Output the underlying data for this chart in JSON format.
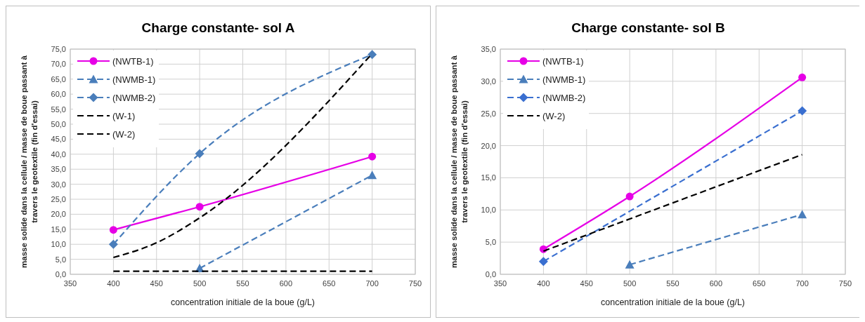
{
  "chart_data": [
    {
      "type": "line",
      "title": "Charge constante- sol A",
      "xlabel": "concentration initiale de la boue (g/L)",
      "ylabel": "masse solide dans la cellule  / masse de boue passant à\ntravers le geotextile (fin d'essai)",
      "xlim": [
        350,
        750
      ],
      "xticks": [
        350,
        400,
        450,
        500,
        550,
        600,
        650,
        700,
        750
      ],
      "ylim": [
        0,
        75
      ],
      "yticks": [
        {
          "value": 0,
          "label": "0,0"
        },
        {
          "value": 5,
          "label": "5,0"
        },
        {
          "value": 10,
          "label": "10,0"
        },
        {
          "value": 15,
          "label": "15,0"
        },
        {
          "value": 20,
          "label": "20,0"
        },
        {
          "value": 25,
          "label": "25,0"
        },
        {
          "value": 30,
          "label": "30,0"
        },
        {
          "value": 35,
          "label": "35,0"
        },
        {
          "value": 40,
          "label": "40,0"
        },
        {
          "value": 45,
          "label": "45,0"
        },
        {
          "value": 50,
          "label": "50,0"
        },
        {
          "value": 55,
          "label": "55,0"
        },
        {
          "value": 60,
          "label": "60,0"
        },
        {
          "value": 65,
          "label": "65,0"
        },
        {
          "value": 70,
          "label": "70,0"
        },
        {
          "value": 75,
          "label": "75,0"
        }
      ],
      "grid": true,
      "legend": "top left",
      "series": [
        {
          "name": "(NWTB-1)",
          "color": "#e600e6",
          "x": [
            400,
            500,
            700
          ],
          "values": [
            14.8,
            22.5,
            39.2
          ],
          "marker": "circle",
          "line_style": "solid"
        },
        {
          "name": "(NWMB-1)",
          "color": "#4a7ebb",
          "x": [
            500,
            700
          ],
          "values": [
            2,
            33
          ],
          "marker": "triangle",
          "line_style": "dashed"
        },
        {
          "name": "(NWMB-2)",
          "color": "#4a7ebb",
          "x": [
            400,
            500,
            700
          ],
          "values": [
            10,
            40.2,
            73.2
          ],
          "marker": "diamond",
          "line_style": "dashed"
        },
        {
          "name": "(W-1)",
          "color": "#000000",
          "x": [
            400,
            700
          ],
          "values": [
            1,
            1
          ],
          "marker": "none",
          "line_style": "dashed"
        },
        {
          "name": "(W-2)",
          "color": "#000000",
          "x": [
            400,
            450,
            500,
            700
          ],
          "values": [
            5.6,
            10.5,
            18.8,
            73.5
          ],
          "marker": "none",
          "line_style": "dashed"
        }
      ]
    },
    {
      "type": "line",
      "title": "Charge constante- sol B",
      "xlabel": "concentration initiale de la boue (g/L)",
      "ylabel": "masse solide dans la cellule  / masse de boue passant à\ntravers le geotextile (fin d'essai)",
      "xlim": [
        350,
        750
      ],
      "xticks": [
        350,
        400,
        450,
        500,
        550,
        600,
        650,
        700,
        750
      ],
      "ylim": [
        0,
        35
      ],
      "yticks": [
        {
          "value": 0,
          "label": "0,0"
        },
        {
          "value": 5,
          "label": "5,0"
        },
        {
          "value": 10,
          "label": "10,0"
        },
        {
          "value": 15,
          "label": "15,0"
        },
        {
          "value": 20,
          "label": "20,0"
        },
        {
          "value": 25,
          "label": "25,0"
        },
        {
          "value": 30,
          "label": "30,0"
        },
        {
          "value": 35,
          "label": "35,0"
        }
      ],
      "grid": true,
      "legend": "top left",
      "series": [
        {
          "name": "(NWTB-1)",
          "color": "#e600e6",
          "x": [
            400,
            500,
            700
          ],
          "values": [
            3.9,
            12.1,
            30.6
          ],
          "marker": "circle",
          "line_style": "solid"
        },
        {
          "name": "(NWMB-1)",
          "color": "#4a7ebb",
          "x": [
            500,
            700
          ],
          "values": [
            1.5,
            9.3
          ],
          "marker": "triangle",
          "line_style": "dashed"
        },
        {
          "name": "(NWMB-2)",
          "color": "#3a6fd0",
          "x": [
            400,
            700
          ],
          "values": [
            2,
            25.4
          ],
          "marker": "diamond",
          "line_style": "dashed"
        },
        {
          "name": "(W-2)",
          "color": "#000000",
          "x": [
            400,
            700
          ],
          "values": [
            3.6,
            18.6
          ],
          "marker": "none",
          "line_style": "dashed"
        }
      ]
    }
  ]
}
